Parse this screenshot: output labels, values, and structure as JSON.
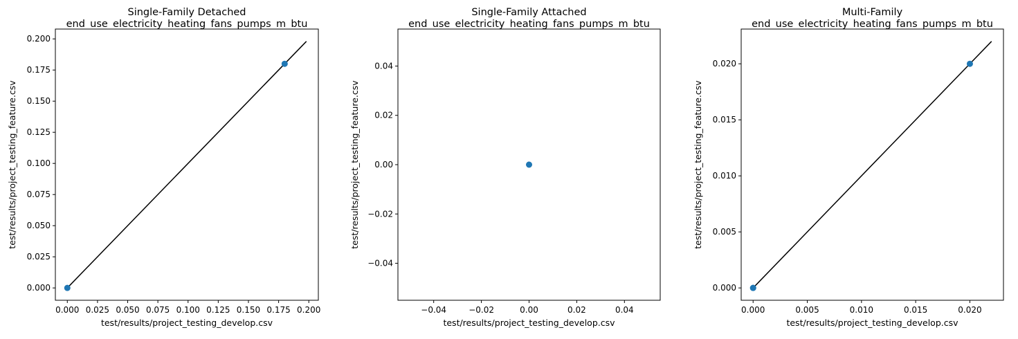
{
  "chart_data": [
    {
      "type": "scatter",
      "title": "Single-Family Detached",
      "subtitle": "end_use_electricity_heating_fans_pumps_m_btu",
      "xlabel": "test/results/project_testing_develop.csv",
      "ylabel": "test/results/project_testing_feature.csv",
      "xlim": [
        -0.0099,
        0.2079
      ],
      "ylim": [
        -0.0099,
        0.2079
      ],
      "xticks": [
        "0.000",
        "0.025",
        "0.050",
        "0.075",
        "0.100",
        "0.125",
        "0.150",
        "0.175",
        "0.200"
      ],
      "yticks": [
        "0.000",
        "0.025",
        "0.050",
        "0.075",
        "0.100",
        "0.125",
        "0.150",
        "0.175",
        "0.200"
      ],
      "points": [
        [
          0.0,
          0.0
        ],
        [
          0.18,
          0.18
        ]
      ],
      "reference_line": [
        [
          0.0,
          0.0
        ],
        [
          0.198,
          0.198
        ]
      ],
      "grid": false
    },
    {
      "type": "scatter",
      "title": "Single-Family Attached",
      "subtitle": "end_use_electricity_heating_fans_pumps_m_btu",
      "xlabel": "test/results/project_testing_develop.csv",
      "ylabel": "test/results/project_testing_feature.csv",
      "xlim": [
        -0.055,
        0.055
      ],
      "ylim": [
        -0.055,
        0.055
      ],
      "xticks": [
        "−0.04",
        "−0.02",
        "0.00",
        "0.02",
        "0.04"
      ],
      "yticks": [
        "−0.04",
        "−0.02",
        "0.00",
        "0.02",
        "0.04"
      ],
      "points": [
        [
          0.0,
          0.0
        ]
      ],
      "reference_line": [
        [
          0.0,
          0.0
        ],
        [
          0.0,
          0.0
        ]
      ],
      "grid": false
    },
    {
      "type": "scatter",
      "title": "Multi-Family",
      "subtitle": "end_use_electricity_heating_fans_pumps_m_btu",
      "xlabel": "test/results/project_testing_develop.csv",
      "ylabel": "test/results/project_testing_feature.csv",
      "xlim": [
        -0.0011,
        0.0231
      ],
      "ylim": [
        -0.0011,
        0.0231
      ],
      "xticks": [
        "0.000",
        "0.005",
        "0.010",
        "0.015",
        "0.020"
      ],
      "yticks": [
        "0.000",
        "0.005",
        "0.010",
        "0.015",
        "0.020"
      ],
      "points": [
        [
          0.0,
          0.0
        ],
        [
          0.0,
          0.0
        ],
        [
          0.02,
          0.02
        ]
      ],
      "reference_line": [
        [
          0.0,
          0.0
        ],
        [
          0.022,
          0.022
        ]
      ],
      "grid": false
    }
  ],
  "colors": {
    "points": "#1f77b4",
    "line": "#000000",
    "axes": "#000000"
  }
}
